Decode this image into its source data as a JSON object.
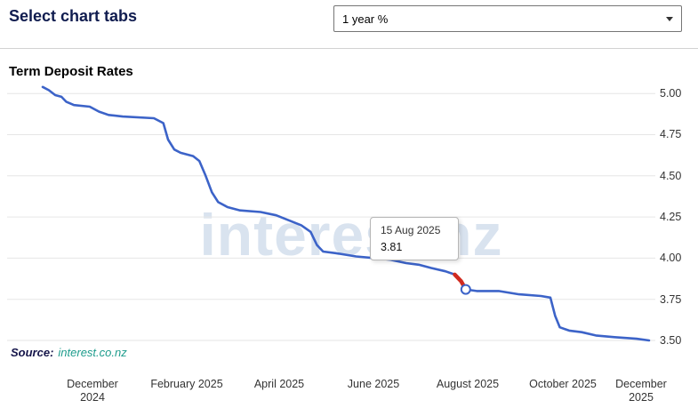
{
  "header": {
    "title": "Select chart tabs",
    "chart_select": {
      "value": "1 year %"
    }
  },
  "chart": {
    "title": "Term Deposit Rates",
    "watermark": "interest.nz",
    "tooltip": {
      "date": "15 Aug 2025",
      "value": "3.81"
    },
    "source": {
      "label": "Source:",
      "link": "interest.co.nz"
    }
  },
  "chart_data": {
    "type": "line",
    "title": "Term Deposit Rates",
    "grid": true,
    "legend": "none",
    "x_range": [
      "2024-11-18",
      "2025-12-10"
    ],
    "ylim": [
      3.5,
      5.055
    ],
    "yticks": [
      5.0,
      4.75,
      4.5,
      4.25,
      4.0,
      3.75,
      3.5
    ],
    "xticks": [
      {
        "date": "2024-12-20",
        "label": "December 2024",
        "wrap": true
      },
      {
        "date": "2025-02-18",
        "label": "February 2025",
        "wrap": false
      },
      {
        "date": "2025-04-18",
        "label": "April 2025",
        "wrap": false
      },
      {
        "date": "2025-06-17",
        "label": "June 2025",
        "wrap": false
      },
      {
        "date": "2025-08-16",
        "label": "August 2025",
        "wrap": false
      },
      {
        "date": "2025-10-16",
        "label": "October 2025",
        "wrap": false
      },
      {
        "date": "2025-12-05",
        "label": "December 2025",
        "wrap": true
      }
    ],
    "series": [
      {
        "name": "1 year %",
        "points": [
          [
            "2024-11-18",
            5.04
          ],
          [
            "2024-11-22",
            5.02
          ],
          [
            "2024-11-26",
            4.99
          ],
          [
            "2024-11-30",
            4.98
          ],
          [
            "2024-12-03",
            4.95
          ],
          [
            "2024-12-08",
            4.93
          ],
          [
            "2024-12-18",
            4.92
          ],
          [
            "2024-12-24",
            4.89
          ],
          [
            "2024-12-30",
            4.87
          ],
          [
            "2025-01-08",
            4.86
          ],
          [
            "2025-01-28",
            4.85
          ],
          [
            "2025-02-03",
            4.82
          ],
          [
            "2025-02-06",
            4.72
          ],
          [
            "2025-02-10",
            4.66
          ],
          [
            "2025-02-14",
            4.64
          ],
          [
            "2025-02-22",
            4.62
          ],
          [
            "2025-02-26",
            4.59
          ],
          [
            "2025-03-02",
            4.5
          ],
          [
            "2025-03-06",
            4.4
          ],
          [
            "2025-03-10",
            4.34
          ],
          [
            "2025-03-16",
            4.31
          ],
          [
            "2025-03-24",
            4.29
          ],
          [
            "2025-04-06",
            4.28
          ],
          [
            "2025-04-16",
            4.26
          ],
          [
            "2025-04-24",
            4.23
          ],
          [
            "2025-05-02",
            4.2
          ],
          [
            "2025-05-08",
            4.16
          ],
          [
            "2025-05-12",
            4.08
          ],
          [
            "2025-05-16",
            4.04
          ],
          [
            "2025-05-24",
            4.03
          ],
          [
            "2025-06-06",
            4.01
          ],
          [
            "2025-06-18",
            4.0
          ],
          [
            "2025-06-28",
            3.99
          ],
          [
            "2025-07-08",
            3.97
          ],
          [
            "2025-07-16",
            3.96
          ],
          [
            "2025-07-24",
            3.94
          ],
          [
            "2025-08-02",
            3.92
          ],
          [
            "2025-08-08",
            3.9
          ],
          [
            "2025-08-12",
            3.86
          ],
          [
            "2025-08-15",
            3.81
          ],
          [
            "2025-08-22",
            3.8
          ],
          [
            "2025-09-05",
            3.8
          ],
          [
            "2025-09-18",
            3.78
          ],
          [
            "2025-10-02",
            3.77
          ],
          [
            "2025-10-08",
            3.76
          ],
          [
            "2025-10-11",
            3.65
          ],
          [
            "2025-10-14",
            3.58
          ],
          [
            "2025-10-20",
            3.56
          ],
          [
            "2025-10-28",
            3.55
          ],
          [
            "2025-11-06",
            3.53
          ],
          [
            "2025-11-18",
            3.52
          ],
          [
            "2025-12-02",
            3.51
          ],
          [
            "2025-12-10",
            3.5
          ]
        ]
      }
    ],
    "highlight": {
      "from": "2025-08-08",
      "to": "2025-08-15",
      "color": "#d02a20"
    },
    "marker": {
      "date": "2025-08-15",
      "value": 3.81
    },
    "colors": {
      "line": "#3c63c8",
      "grid": "#e6e6e6",
      "watermark": "#d9e3ef",
      "axis_text": "#333333",
      "heading": "#101c4f",
      "link": "#1d9c8c",
      "highlight": "#d02a20"
    }
  }
}
